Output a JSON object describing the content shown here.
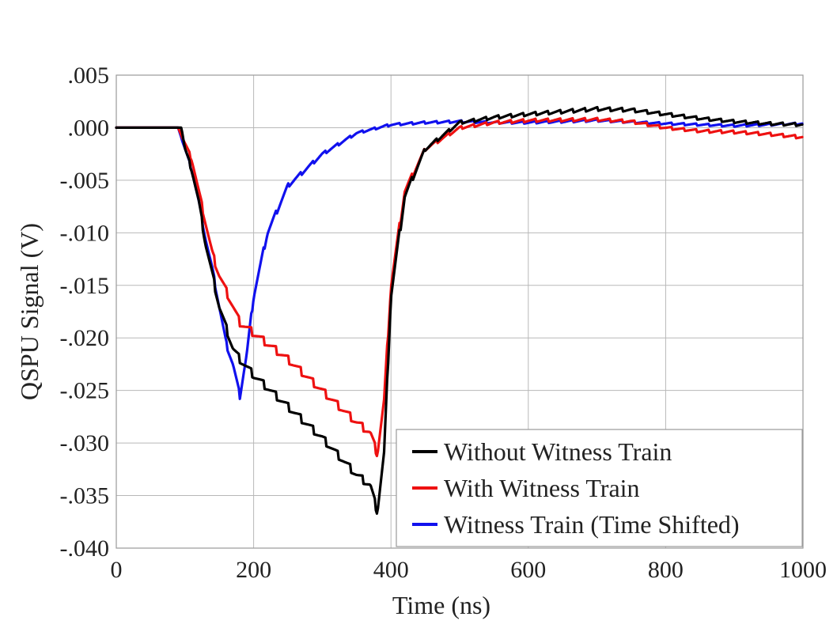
{
  "chart_data": {
    "type": "line",
    "title": "",
    "xlabel": "Time (ns)",
    "ylabel": "QSPU Signal (V)",
    "xlim": [
      0,
      1000
    ],
    "ylim": [
      -0.04,
      0.005
    ],
    "xticks": [
      0,
      200,
      400,
      600,
      800,
      1000
    ],
    "xtick_labels": [
      "0",
      "200",
      "400",
      "600",
      "800",
      "1000"
    ],
    "yticks": [
      0.005,
      0.0,
      -0.005,
      -0.01,
      -0.015,
      -0.02,
      -0.025,
      -0.03,
      -0.035,
      -0.04
    ],
    "ytick_labels": [
      ".005",
      ".000",
      "-.005",
      "-.010",
      "-.015",
      "-.020",
      "-.025",
      "-.030",
      "-.035",
      "-.040"
    ],
    "grid": true,
    "legend_position": "bottom-right",
    "series": [
      {
        "name": "Without Witness Train",
        "color": "#000000",
        "ripple": 0.0008,
        "x": [
          0,
          50,
          90,
          95,
          100,
          110,
          120,
          130,
          140,
          150,
          160,
          170,
          180,
          200,
          250,
          300,
          350,
          370,
          380,
          390,
          400,
          420,
          450,
          500,
          550,
          600,
          700,
          750,
          800,
          850,
          900,
          950,
          1000
        ],
        "y": [
          0.0,
          0.0,
          0.0,
          0.0,
          -0.002,
          -0.004,
          -0.007,
          -0.011,
          -0.014,
          -0.017,
          -0.019,
          -0.021,
          -0.022,
          -0.0235,
          -0.0265,
          -0.0295,
          -0.033,
          -0.034,
          -0.0365,
          -0.031,
          -0.016,
          -0.0065,
          -0.002,
          0.0005,
          0.001,
          0.0013,
          0.0018,
          0.0017,
          0.0013,
          0.0009,
          0.0006,
          0.0004,
          0.0003
        ]
      },
      {
        "name": "With Witness Train",
        "color": "#ee1111",
        "ripple": 0.0008,
        "x": [
          0,
          50,
          90,
          100,
          110,
          120,
          130,
          140,
          150,
          160,
          170,
          180,
          200,
          250,
          300,
          350,
          370,
          380,
          390,
          400,
          420,
          450,
          500,
          550,
          600,
          700,
          750,
          800,
          850,
          900,
          950,
          1000
        ],
        "y": [
          0.0,
          0.0,
          0.0,
          -0.0015,
          -0.003,
          -0.006,
          -0.009,
          -0.012,
          -0.014,
          -0.0155,
          -0.017,
          -0.0185,
          -0.0195,
          -0.022,
          -0.025,
          -0.028,
          -0.029,
          -0.031,
          -0.026,
          -0.015,
          -0.006,
          -0.002,
          0.0,
          0.0005,
          0.0007,
          0.0008,
          0.0006,
          0.0,
          -0.0003,
          -0.0004,
          -0.0006,
          -0.0009
        ]
      },
      {
        "name": "Witness Train (Time Shifted)",
        "color": "#1111ee",
        "ripple": 0.0006,
        "x": [
          0,
          50,
          90,
          100,
          110,
          120,
          130,
          140,
          150,
          160,
          170,
          180,
          190,
          200,
          220,
          250,
          300,
          350,
          400,
          450,
          500,
          550,
          600,
          700,
          800,
          900,
          1000
        ],
        "y": [
          0.0,
          0.0,
          0.0,
          -0.002,
          -0.004,
          -0.007,
          -0.0105,
          -0.0135,
          -0.017,
          -0.0205,
          -0.0225,
          -0.0255,
          -0.0215,
          -0.016,
          -0.01,
          -0.0055,
          -0.0025,
          -0.0005,
          0.0003,
          0.0005,
          0.0006,
          0.0005,
          0.0005,
          0.0007,
          0.0004,
          0.0002,
          0.0004
        ]
      }
    ]
  }
}
